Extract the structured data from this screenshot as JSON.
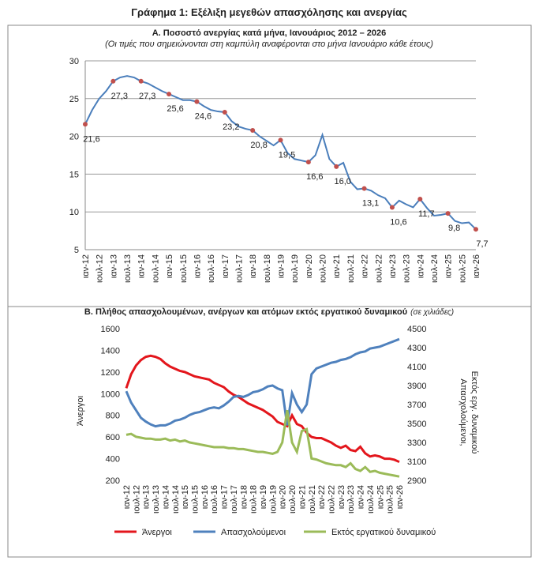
{
  "title": "Γράφημα 1: Εξέλιξη μεγεθών απασχόλησης και ανεργίας",
  "chart_data": [
    {
      "type": "line",
      "title": "Α. Ποσοστό ανεργίας κατά μήνα, Ιανουάριος 2012 – 2026",
      "subtitle": "(Οι τιμές που σημειώνονται στη καμπύλη αναφέρονται στο μήνα Ιανουάριο κάθε έτους)",
      "categories": [
        "ιαν-12",
        null,
        "ιουλ-12",
        null,
        "ιαν-13",
        null,
        "ιουλ-13",
        null,
        "ιαν-14",
        null,
        "ιουλ-14",
        null,
        "ιαν-15",
        null,
        "ιουλ-15",
        null,
        "ιαν-16",
        null,
        "ιουλ-16",
        null,
        "ιαν-17",
        null,
        "ιουλ-17",
        null,
        "ιαν-18",
        null,
        "ιουλ-18",
        null,
        "ιαν-19",
        null,
        "ιουλ-19",
        null,
        "ιαν-20",
        null,
        "ιουλ-20",
        null,
        "ιαν-21",
        null,
        "ιουλ-21",
        null,
        "ιαν-22",
        null,
        "ιουλ-22",
        null,
        "ιαν-23",
        null,
        "ιουλ-23",
        null,
        "ιαν-24",
        null,
        "ιουλ-24",
        null,
        "ιαν-25",
        null,
        "ιουλ-25",
        null,
        "ιαν-26"
      ],
      "values": [
        21.6,
        23.5,
        25.0,
        26.0,
        27.3,
        27.8,
        28.0,
        27.8,
        27.3,
        27.0,
        26.5,
        26.0,
        25.6,
        25.2,
        24.8,
        24.8,
        24.6,
        24.0,
        23.5,
        23.3,
        23.2,
        22.0,
        21.3,
        21.0,
        20.8,
        20.0,
        19.4,
        18.8,
        19.5,
        17.8,
        17.0,
        16.8,
        16.6,
        17.5,
        20.2,
        17.0,
        16.0,
        16.5,
        14.0,
        13.0,
        13.1,
        12.8,
        12.2,
        11.8,
        10.6,
        11.5,
        11.0,
        10.6,
        11.7,
        10.5,
        9.5,
        9.6,
        9.8,
        8.8,
        8.5,
        8.6,
        7.7
      ],
      "value_labels": [
        "21,6",
        null,
        null,
        null,
        "27,3",
        null,
        null,
        null,
        "27,3",
        null,
        null,
        null,
        "25,6",
        null,
        null,
        null,
        "24,6",
        null,
        null,
        null,
        "23,2",
        null,
        null,
        null,
        "20,8",
        null,
        null,
        null,
        "19,5",
        null,
        null,
        null,
        "16,6",
        null,
        null,
        null,
        "16,0",
        null,
        null,
        null,
        "13,1",
        null,
        null,
        null,
        "10,6",
        null,
        null,
        null,
        "11,7",
        null,
        null,
        null,
        "9,8",
        null,
        null,
        null,
        "7,7"
      ],
      "color": "#4a7ebb",
      "marker_color": "#c0504d",
      "ylim": [
        5,
        30
      ],
      "yticks": [
        5,
        10,
        15,
        20,
        25,
        30
      ],
      "grid": true
    },
    {
      "type": "line",
      "title": "Β. Πλήθος απασχολουμένων, ανέργων και ατόμων εκτός εργατικού δυναμικού",
      "subtitle": "(σε χιλιάδες)",
      "categories": [
        "ιαν-12",
        null,
        "ιουλ-12",
        null,
        "ιαν-13",
        null,
        "ιουλ-13",
        null,
        "ιαν-14",
        null,
        "ιουλ-14",
        null,
        "ιαν-15",
        null,
        "ιουλ-15",
        null,
        "ιαν-16",
        null,
        "ιουλ-16",
        null,
        "ιαν-17",
        null,
        "ιουλ-17",
        null,
        "ιαν-18",
        null,
        "ιουλ-18",
        null,
        "ιαν-19",
        null,
        "ιουλ-19",
        null,
        "ιαν-20",
        null,
        "ιουλ-20",
        null,
        "ιαν-21",
        null,
        "ιουλ-21",
        null,
        "ιαν-22",
        null,
        "ιουλ-22",
        null,
        "ιαν-23",
        null,
        "ιουλ-23",
        null,
        "ιαν-24",
        null,
        "ιουλ-24",
        null,
        "ιαν-25",
        null,
        "ιουλ-25",
        null,
        "ιαν-26"
      ],
      "ylabel": "Άνεργοι",
      "y2label": [
        "Απασχολούμενοι,",
        "Εκτός εργ. δυναμικού"
      ],
      "series": [
        {
          "name": "Άνεργοι",
          "color": "#e3161c",
          "axis": "y",
          "values": [
            1050,
            1180,
            1260,
            1310,
            1340,
            1350,
            1340,
            1320,
            1280,
            1250,
            1230,
            1210,
            1200,
            1180,
            1160,
            1150,
            1140,
            1130,
            1100,
            1080,
            1060,
            1020,
            990,
            970,
            940,
            910,
            890,
            870,
            850,
            820,
            790,
            740,
            720,
            700,
            800,
            720,
            700,
            640,
            600,
            590,
            590,
            570,
            550,
            520,
            500,
            520,
            480,
            470,
            510,
            450,
            420,
            430,
            420,
            400,
            400,
            390,
            370
          ]
        },
        {
          "name": "Απασχολούμενοι",
          "color": "#4f81bd",
          "axis": "y2",
          "values": [
            3840,
            3720,
            3640,
            3560,
            3520,
            3490,
            3470,
            3480,
            3480,
            3500,
            3530,
            3540,
            3560,
            3590,
            3610,
            3620,
            3640,
            3660,
            3670,
            3660,
            3690,
            3730,
            3780,
            3790,
            3780,
            3800,
            3830,
            3840,
            3860,
            3890,
            3900,
            3870,
            3850,
            3480,
            3820,
            3700,
            3620,
            3700,
            4020,
            4080,
            4100,
            4120,
            4140,
            4150,
            4170,
            4180,
            4200,
            4230,
            4250,
            4260,
            4290,
            4300,
            4310,
            4330,
            4350,
            4370,
            4390
          ]
        },
        {
          "name": "Εκτός εργατικού δυναμικού",
          "color": "#9bbb59",
          "axis": "y2",
          "values": [
            3380,
            3390,
            3360,
            3350,
            3340,
            3340,
            3330,
            3330,
            3340,
            3320,
            3330,
            3310,
            3320,
            3300,
            3290,
            3280,
            3270,
            3260,
            3250,
            3250,
            3250,
            3240,
            3240,
            3230,
            3230,
            3220,
            3210,
            3200,
            3200,
            3190,
            3180,
            3200,
            3300,
            3640,
            3300,
            3200,
            3420,
            3440,
            3130,
            3120,
            3100,
            3080,
            3070,
            3060,
            3060,
            3040,
            3080,
            3020,
            3000,
            3040,
            2990,
            3000,
            2980,
            2970,
            2960,
            2950,
            2940
          ]
        }
      ],
      "ylim": [
        200,
        1600
      ],
      "yticks": [
        200,
        400,
        600,
        800,
        1000,
        1200,
        1400,
        1600
      ],
      "y2lim": [
        2900,
        4500
      ],
      "y2ticks": [
        2900,
        3100,
        3300,
        3500,
        3700,
        3900,
        4100,
        4300,
        4500
      ],
      "grid": false,
      "legend": "bottom"
    }
  ]
}
